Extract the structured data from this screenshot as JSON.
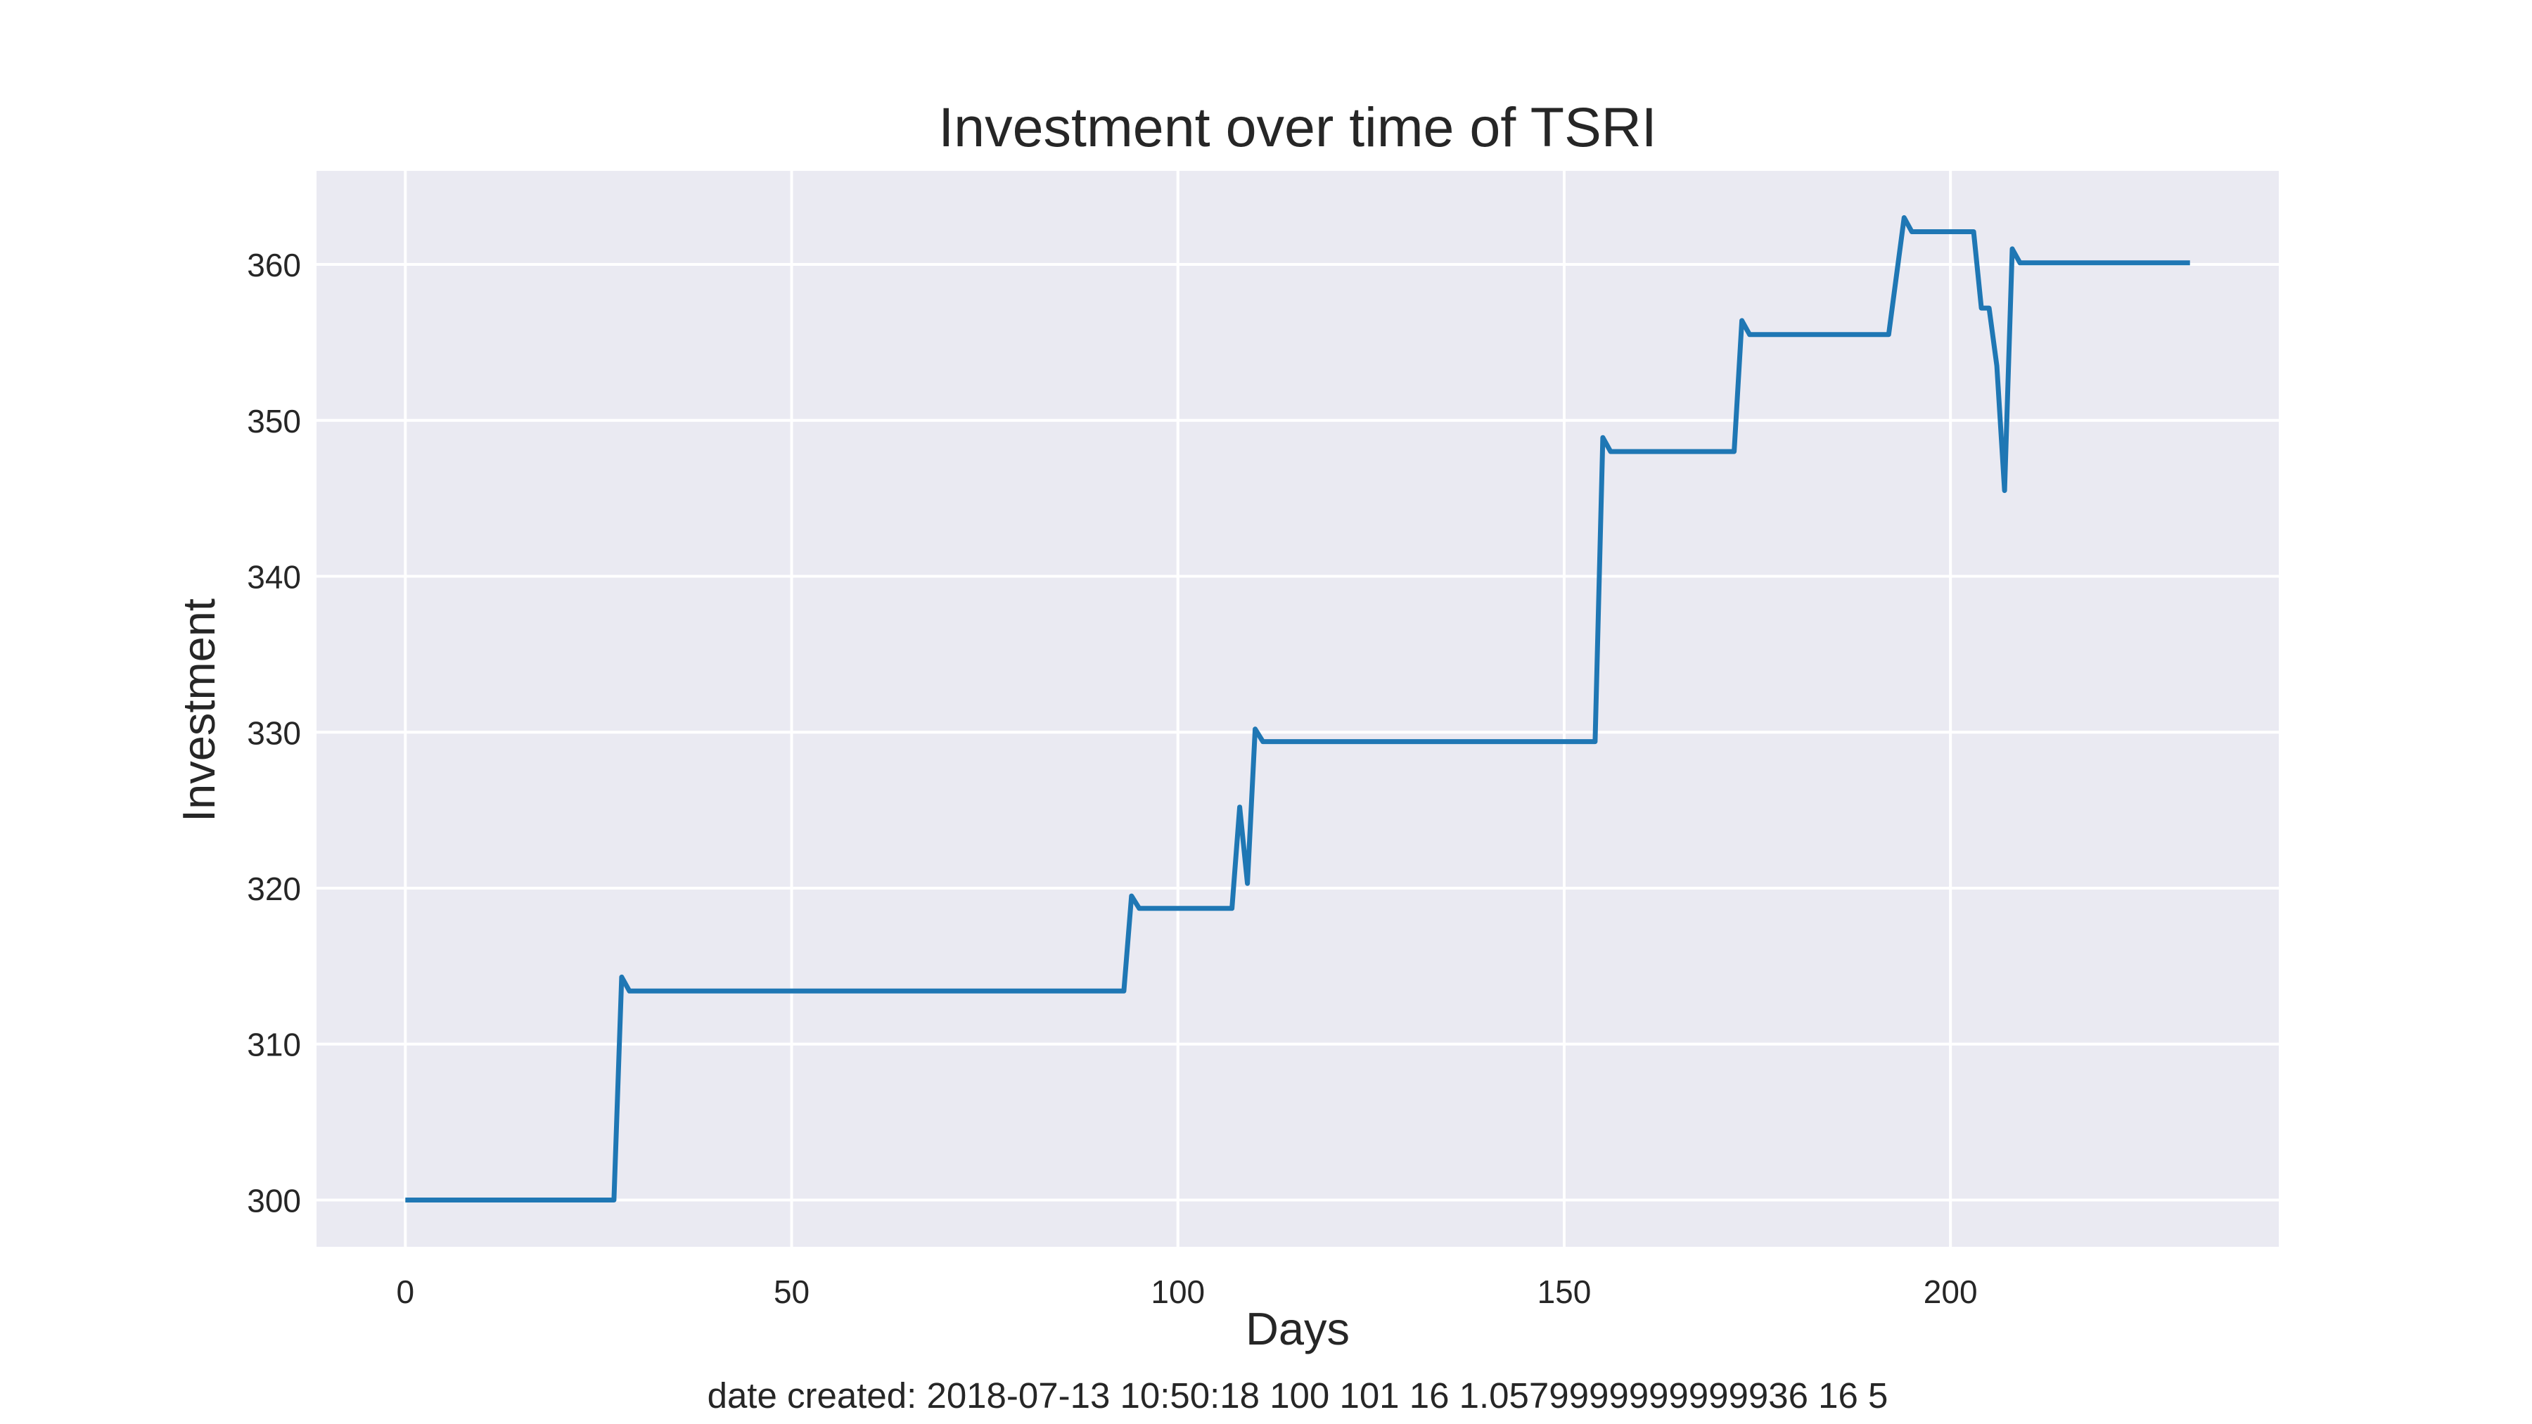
{
  "chart_data": {
    "type": "line",
    "title": "Investment over time of TSRI",
    "xlabel": "Days",
    "ylabel": "Investment",
    "xlim": [
      -11.5,
      242.5
    ],
    "ylim": [
      297,
      366
    ],
    "xticks": [
      0,
      50,
      100,
      150,
      200
    ],
    "yticks": [
      300,
      310,
      320,
      330,
      340,
      350,
      360
    ],
    "grid": true,
    "legend": "none",
    "colors": {
      "line": "#1f77b4",
      "axes_bg": "#eaeaf2",
      "grid": "#ffffff",
      "text": "#262626"
    },
    "series": [
      {
        "points": [
          [
            0,
            300
          ],
          [
            27,
            300
          ],
          [
            28,
            314.3
          ],
          [
            29,
            313.4
          ],
          [
            93,
            313.4
          ],
          [
            94,
            319.5
          ],
          [
            95,
            318.7
          ],
          [
            107,
            318.7
          ],
          [
            108,
            325.2
          ],
          [
            109,
            320.3
          ],
          [
            110,
            330.2
          ],
          [
            111,
            329.4
          ],
          [
            154,
            329.4
          ],
          [
            155,
            348.9
          ],
          [
            156,
            348.0
          ],
          [
            172,
            348.0
          ],
          [
            173,
            356.4
          ],
          [
            174,
            355.5
          ],
          [
            192,
            355.5
          ],
          [
            194,
            363.0
          ],
          [
            195,
            362.1
          ],
          [
            203,
            362.1
          ],
          [
            204,
            357.2
          ],
          [
            205,
            357.2
          ],
          [
            206,
            353.5
          ],
          [
            207,
            345.5
          ],
          [
            208,
            361.0
          ],
          [
            209,
            360.1
          ],
          [
            231,
            360.1
          ]
        ]
      }
    ]
  },
  "footer": "date created: 2018-07-13 10:50:18 100 101 16 1.0579999999999936 16 5"
}
